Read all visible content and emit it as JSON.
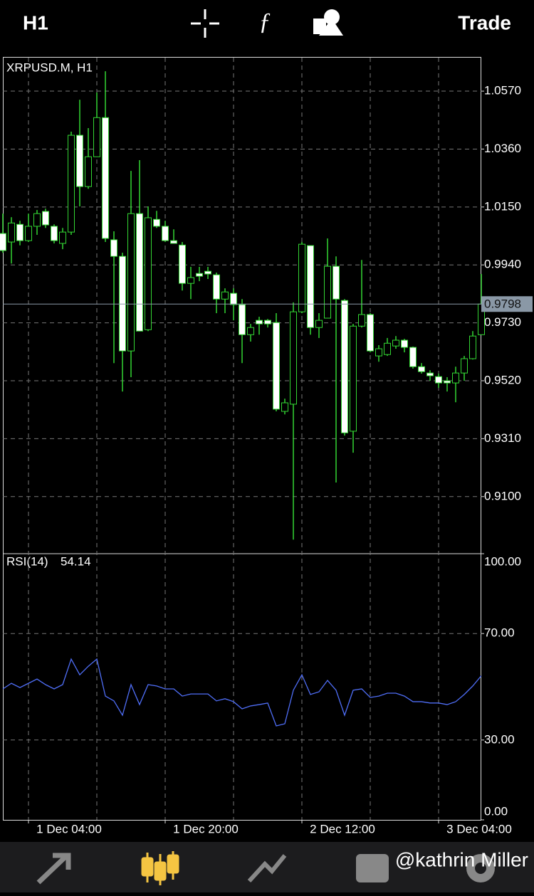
{
  "header": {
    "title": "H1",
    "action": "Trade"
  },
  "chart_data": [
    {
      "type": "candlestick",
      "title": "XRPUSD.M, H1",
      "categories": [
        null,
        null,
        null,
        "1 Dec 04:00",
        null,
        null,
        null,
        null,
        null,
        null,
        null,
        null,
        null,
        null,
        null,
        null,
        null,
        null,
        null,
        "1 Dec 20:00",
        null,
        null,
        null,
        null,
        null,
        null,
        null,
        null,
        null,
        null,
        null,
        null,
        null,
        null,
        null,
        "2 Dec 12:00",
        null,
        null,
        null,
        null,
        null,
        null,
        null,
        null,
        null,
        null,
        null,
        null,
        null,
        null,
        null,
        "3 Dec 04:00",
        null,
        null,
        null,
        null,
        null
      ],
      "open": [
        1.0054,
        1.0023,
        1.0087,
        1.0028,
        1.008,
        1.0134,
        1.008,
        1.0018,
        1.0059,
        1.041,
        1.0224,
        1.0332,
        1.0474,
        1.0031,
        0.9971,
        0.9628,
        1.0126,
        0.9705,
        1.0105,
        1.008,
        1.0028,
        1.0012,
        0.9873,
        0.9909,
        0.9917,
        0.9904,
        0.9816,
        0.9837,
        0.9796,
        0.9687,
        0.9739,
        0.9739,
        0.9731,
        0.9409,
        0.9435,
        0.977,
        1.001,
        0.9713,
        0.9747,
        0.9935,
        0.9811,
        0.9337,
        0.9718,
        0.976,
        0.961,
        0.9615,
        0.9646,
        0.9667,
        0.9641,
        0.9571,
        0.9548,
        0.9535,
        0.952,
        0.9512,
        0.9548,
        0.96,
        0.9687
      ],
      "high": [
        1.0126,
        1.0113,
        1.01,
        1.0126,
        1.0139,
        1.0144,
        1.0087,
        1.0074,
        1.0423,
        1.0539,
        1.0436,
        1.0565,
        1.0642,
        1.0062,
        0.9984,
        1.0281,
        1.032,
        1.0152,
        1.0136,
        1.01,
        1.0069,
        1.0023,
        0.9933,
        0.9933,
        0.9933,
        0.9912,
        0.9855,
        0.9855,
        0.9816,
        0.9726,
        0.9752,
        0.9744,
        0.9765,
        0.9455,
        0.9804,
        1.0023,
        1.001,
        0.9765,
        1.0036,
        0.9971,
        0.9816,
        0.9726,
        0.9958,
        0.9765,
        0.9649,
        0.9675,
        0.9682,
        0.9672,
        0.9644,
        0.9584,
        0.9558,
        0.9546,
        0.9533,
        0.9571,
        0.961,
        0.97,
        0.9907
      ],
      "low": [
        0.9984,
        0.9945,
        1.0011,
        1.0023,
        1.0049,
        1.0074,
        1.0018,
        0.9997,
        1.0049,
        1.0152,
        1.0216,
        1.0338,
        1.0023,
        0.9584,
        0.9481,
        0.9533,
        0.97,
        0.97,
        1.0074,
        1.0023,
        1.0018,
        0.9847,
        0.9816,
        0.9881,
        0.9889,
        0.9765,
        0.9765,
        0.9739,
        0.9584,
        0.9662,
        0.9687,
        0.9713,
        0.9409,
        0.9398,
        0.8944,
        0.9765,
        0.9687,
        0.9675,
        0.9747,
        0.9151,
        0.9321,
        0.9259,
        0.9713,
        0.9623,
        0.9589,
        0.961,
        0.9636,
        0.9623,
        0.9564,
        0.9546,
        0.952,
        0.9494,
        0.9481,
        0.9442,
        0.952,
        0.9597,
        0.9687
      ],
      "close": [
        0.9992,
        1.0092,
        1.0028,
        1.008,
        1.0126,
        1.0085,
        1.0028,
        1.0059,
        1.041,
        1.0224,
        1.0332,
        1.0474,
        1.0036,
        0.9971,
        0.9628,
        1.0126,
        0.97,
        1.0111,
        1.008,
        1.0028,
        1.0018,
        0.9873,
        0.9894,
        0.9899,
        0.9907,
        0.9816,
        0.9842,
        0.9796,
        0.9687,
        0.9713,
        0.9726,
        0.9726,
        0.9417,
        0.944,
        0.977,
        1.0015,
        0.9713,
        0.9739,
        0.9935,
        0.9816,
        0.9331,
        0.9718,
        0.976,
        0.9628,
        0.9636,
        0.9656,
        0.9667,
        0.9641,
        0.9571,
        0.9553,
        0.9538,
        0.9512,
        0.9512,
        0.9548,
        0.96,
        0.9682,
        0.9798
      ],
      "bull_color": "#000000",
      "bear_color": "#ffffff",
      "wick_color": "#33d633",
      "ylim": [
        0.8893,
        1.0694
      ],
      "yticks": [
        {
          "value": 1.057,
          "label": "1.0570"
        },
        {
          "value": 1.036,
          "label": "1.0360"
        },
        {
          "value": 1.015,
          "label": "1.0150"
        },
        {
          "value": 0.994,
          "label": "0.9940"
        },
        {
          "value": 0.973,
          "label": "0.9730"
        },
        {
          "value": 0.952,
          "label": "0.9520"
        },
        {
          "value": 0.931,
          "label": "0.9310"
        },
        {
          "value": 0.91,
          "label": "0.9100"
        }
      ],
      "current_price": {
        "value": 0.9798,
        "label": "0.9798"
      },
      "grid": true
    },
    {
      "type": "line",
      "title": "RSI(14)",
      "series": [
        {
          "name": "RSI(14)",
          "color": "#4f6ef7",
          "values": [
            49.2,
            51.3,
            49.7,
            51.3,
            52.9,
            50.8,
            49.2,
            50.8,
            60.4,
            54.5,
            57.7,
            60.4,
            46.5,
            44.7,
            39.3,
            50.8,
            43.3,
            50.8,
            50.3,
            49.2,
            49.2,
            46.5,
            47.3,
            47.3,
            47.3,
            44.7,
            45.5,
            44.4,
            41.7,
            42.8,
            43.3,
            43.9,
            35.3,
            36.1,
            48.7,
            54.5,
            47.1,
            48.1,
            52.4,
            48.7,
            39.3,
            48.7,
            49.2,
            46.0,
            46.5,
            47.6,
            47.6,
            46.5,
            44.4,
            44.4,
            43.9,
            43.9,
            43.3,
            44.4,
            47.1,
            50.3,
            54.14
          ]
        }
      ],
      "ylim": [
        0,
        100
      ],
      "yticks": [
        {
          "value": 100,
          "label": "100.00"
        },
        {
          "value": 70,
          "label": "70.00"
        },
        {
          "value": 30,
          "label": "30.00"
        },
        {
          "value": 0,
          "label": "0.00"
        }
      ]
    }
  ],
  "footer": {
    "watermark": "@kathrin Miller"
  }
}
